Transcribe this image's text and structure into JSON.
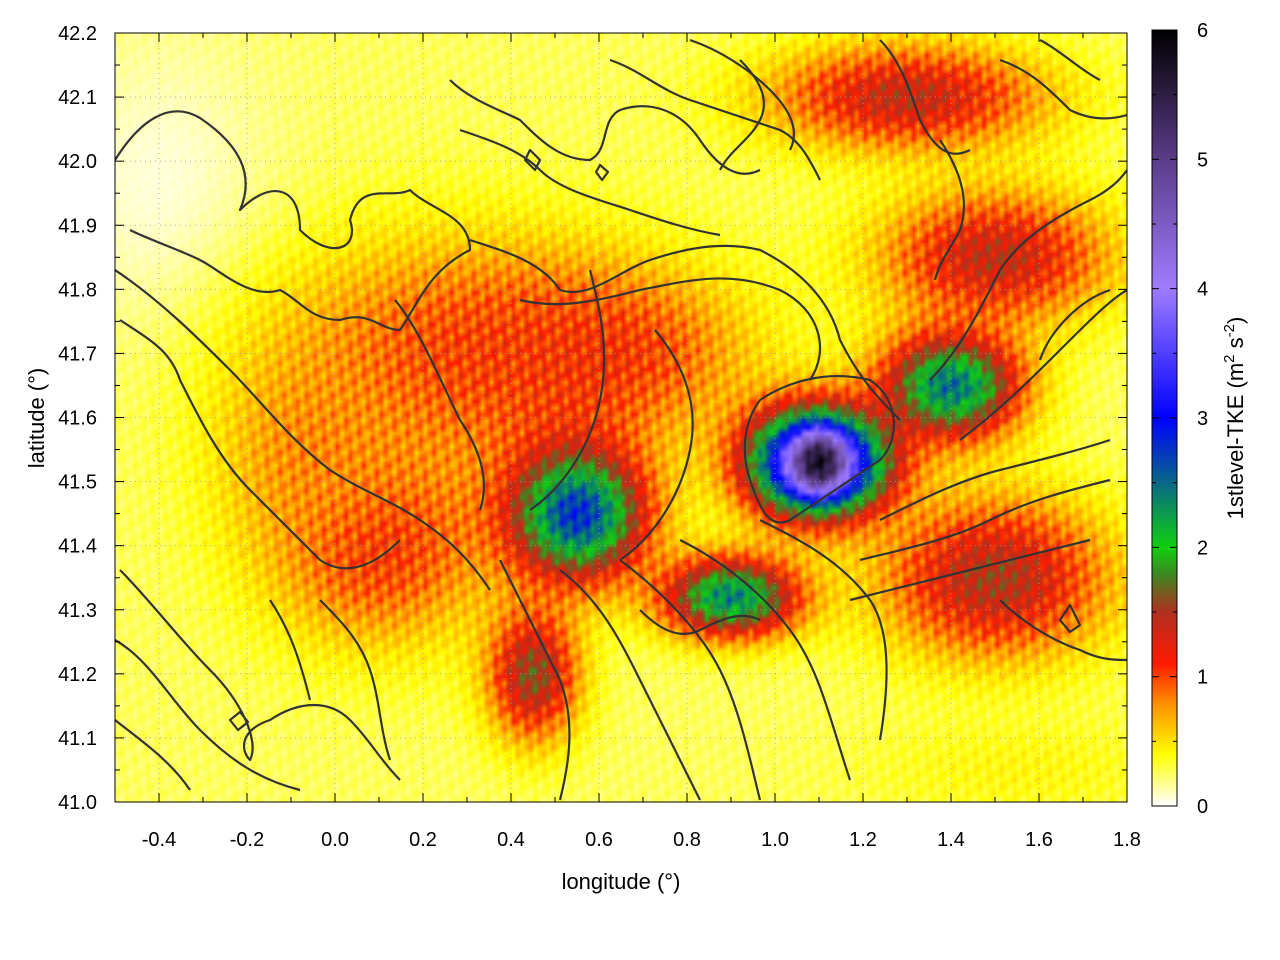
{
  "chart_data": {
    "type": "heatmap",
    "xlabel": "longitude (°)",
    "ylabel": "latitude (°)",
    "colorbar_label_main": "1stlevel-TKE (m",
    "colorbar_label_sup1": "2",
    "colorbar_label_mid": " s",
    "colorbar_label_sup2": "-2",
    "colorbar_label_end": ")",
    "xlim": [
      -0.5,
      1.8
    ],
    "ylim": [
      41.0,
      42.2
    ],
    "zlim": [
      0,
      6
    ],
    "x_ticks": [
      {
        "value": -0.4,
        "label": "-0.4"
      },
      {
        "value": -0.2,
        "label": "-0.2"
      },
      {
        "value": 0.0,
        "label": "0.0"
      },
      {
        "value": 0.2,
        "label": "0.2"
      },
      {
        "value": 0.4,
        "label": "0.4"
      },
      {
        "value": 0.6,
        "label": "0.6"
      },
      {
        "value": 0.8,
        "label": "0.8"
      },
      {
        "value": 1.0,
        "label": "1.0"
      },
      {
        "value": 1.2,
        "label": "1.2"
      },
      {
        "value": 1.4,
        "label": "1.4"
      },
      {
        "value": 1.6,
        "label": "1.6"
      },
      {
        "value": 1.8,
        "label": "1.8"
      }
    ],
    "y_ticks": [
      {
        "value": 41.0,
        "label": "41.0"
      },
      {
        "value": 41.1,
        "label": "41.1"
      },
      {
        "value": 41.2,
        "label": "41.2"
      },
      {
        "value": 41.3,
        "label": "41.3"
      },
      {
        "value": 41.4,
        "label": "41.4"
      },
      {
        "value": 41.5,
        "label": "41.5"
      },
      {
        "value": 41.6,
        "label": "41.6"
      },
      {
        "value": 41.7,
        "label": "41.7"
      },
      {
        "value": 41.8,
        "label": "41.8"
      },
      {
        "value": 41.9,
        "label": "41.9"
      },
      {
        "value": 42.0,
        "label": "42.0"
      },
      {
        "value": 42.1,
        "label": "42.1"
      },
      {
        "value": 42.2,
        "label": "42.2"
      }
    ],
    "cb_ticks": [
      {
        "value": 0,
        "label": "0"
      },
      {
        "value": 1,
        "label": "1"
      },
      {
        "value": 2,
        "label": "2"
      },
      {
        "value": 3,
        "label": "3"
      },
      {
        "value": 4,
        "label": "4"
      },
      {
        "value": 5,
        "label": "5"
      },
      {
        "value": 6,
        "label": "6"
      }
    ],
    "grid": true,
    "colormap": [
      {
        "value": 0.0,
        "color": "#ffffff"
      },
      {
        "value": 0.4,
        "color": "#ffff00"
      },
      {
        "value": 0.8,
        "color": "#ff8c00"
      },
      {
        "value": 1.1,
        "color": "#ff1a00"
      },
      {
        "value": 1.5,
        "color": "#b03020"
      },
      {
        "value": 1.8,
        "color": "#3a8a20"
      },
      {
        "value": 2.0,
        "color": "#10d010"
      },
      {
        "value": 3.0,
        "color": "#0000ff"
      },
      {
        "value": 4.0,
        "color": "#9f7cff"
      },
      {
        "value": 5.0,
        "color": "#5a3c88"
      },
      {
        "value": 6.0,
        "color": "#000000"
      }
    ],
    "field_features": [
      {
        "lon": -0.4,
        "lat": 41.95,
        "tke": 0.05,
        "rlon": 0.25,
        "rlat": 0.25
      },
      {
        "lon": 0.3,
        "lat": 41.7,
        "tke": 1.0,
        "rlon": 0.45,
        "rlat": 0.18
      },
      {
        "lon": 0.6,
        "lat": 41.7,
        "tke": 1.1,
        "rlon": 0.3,
        "rlat": 0.12
      },
      {
        "lon": 0.1,
        "lat": 41.4,
        "tke": 1.1,
        "rlon": 0.25,
        "rlat": 0.15
      },
      {
        "lon": -0.05,
        "lat": 41.55,
        "tke": 0.8,
        "rlon": 0.2,
        "rlat": 0.15
      },
      {
        "lon": 0.55,
        "lat": 41.45,
        "tke": 2.8,
        "rlon": 0.15,
        "rlat": 0.1
      },
      {
        "lon": 0.45,
        "lat": 41.2,
        "tke": 1.6,
        "rlon": 0.1,
        "rlat": 0.1
      },
      {
        "lon": 1.1,
        "lat": 41.53,
        "tke": 4.6,
        "rlon": 0.15,
        "rlat": 0.08
      },
      {
        "lon": 1.1,
        "lat": 41.53,
        "tke": 5.8,
        "rlon": 0.05,
        "rlat": 0.04
      },
      {
        "lon": 1.4,
        "lat": 41.65,
        "tke": 2.5,
        "rlon": 0.15,
        "rlat": 0.08
      },
      {
        "lon": 0.9,
        "lat": 41.32,
        "tke": 2.4,
        "rlon": 0.15,
        "rlat": 0.06
      },
      {
        "lon": 1.3,
        "lat": 42.1,
        "tke": 1.4,
        "rlon": 0.3,
        "rlat": 0.08
      },
      {
        "lon": 1.5,
        "lat": 41.85,
        "tke": 1.4,
        "rlon": 0.25,
        "rlat": 0.1
      },
      {
        "lon": 1.5,
        "lat": 41.35,
        "tke": 1.5,
        "rlon": 0.25,
        "rlat": 0.12
      },
      {
        "lon": 1.55,
        "lat": 41.05,
        "tke": 0.4,
        "rlon": 0.35,
        "rlat": 0.08
      }
    ]
  }
}
